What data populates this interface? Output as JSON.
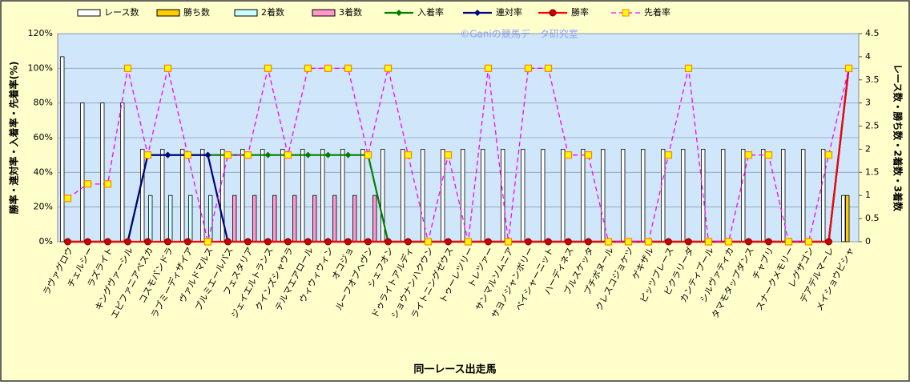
{
  "chart_data": {
    "type": "combo",
    "watermark": "©Ganiの競馬データ研究室",
    "x_label": "同一レース出走馬",
    "y_label": "勝率・連対率・入着率・先着率(%)",
    "y2_label": "レース数・勝ち数・2着数・3着数",
    "categories": [
      "ラヴァグロウ",
      "チェルシー",
      "ラズライト",
      "キングヴァーシル",
      "エピファニアペスカ",
      "コスモパンドラ",
      "ラブミーディザイア",
      "ヴァルドマルス",
      "プルミエールパス",
      "フェスタリア",
      "ジェイエルトランス",
      "クインズシャウラ",
      "テルマエアロール",
      "ウィウィウィン",
      "オコジョ",
      "ルーフオブヘヴン",
      "シェフオン",
      "ドゥライトアルディ",
      "ショウナンハクウン",
      "ライトニングゼウス",
      "トゥーレツリー",
      "トレツァー",
      "サンマルソムニア",
      "サヨノジャンボリー",
      "ベイシャーニット",
      "ハーディネス",
      "ブルスケッタ",
      "プチボヌール",
      "クレスコジョケツ",
      "ゲキザル",
      "ピッツブレース",
      "ビクラリーダ",
      "カンティプール",
      "シルヴァティカ",
      "タマモタップダンス",
      "チャブリ",
      "スナークメモリー",
      "レグザゴン",
      "デアデルマーレ",
      "メイショウビシャ"
    ],
    "ylim": [
      0,
      120
    ],
    "yticks": [
      {
        "value": 0,
        "label": "0%"
      },
      {
        "value": 20,
        "label": "20%"
      },
      {
        "value": 40,
        "label": "40%"
      },
      {
        "value": 60,
        "label": "60%"
      },
      {
        "value": 80,
        "label": "80%"
      },
      {
        "value": 100,
        "label": "100%"
      },
      {
        "value": 120,
        "label": "120%"
      }
    ],
    "y2lim": [
      0,
      4.5
    ],
    "y2ticks": [
      0,
      0.5,
      1,
      1.5,
      2,
      2.5,
      3,
      3.5,
      4,
      4.5
    ],
    "grid": true,
    "series": [
      {
        "name": "レース数",
        "type": "bar",
        "axis": "y2",
        "color": "#ffffff",
        "values": [
          4,
          3,
          3,
          3,
          2,
          2,
          2,
          2,
          2,
          2,
          2,
          2,
          2,
          2,
          2,
          2,
          2,
          2,
          2,
          2,
          2,
          2,
          2,
          2,
          2,
          2,
          2,
          2,
          2,
          2,
          2,
          2,
          2,
          2,
          2,
          2,
          2,
          2,
          2,
          1
        ]
      },
      {
        "name": "勝ち数",
        "type": "bar",
        "axis": "y2",
        "color": "#ffcc00",
        "values": [
          0,
          0,
          0,
          0,
          0,
          0,
          0,
          0,
          0,
          0,
          0,
          0,
          0,
          0,
          0,
          0,
          0,
          0,
          0,
          0,
          0,
          0,
          0,
          0,
          0,
          0,
          0,
          0,
          0,
          0,
          0,
          0,
          0,
          0,
          0,
          0,
          0,
          0,
          0,
          1
        ]
      },
      {
        "name": "2着数",
        "type": "bar",
        "axis": "y2",
        "color": "#ccffff",
        "values": [
          0,
          0,
          0,
          0,
          1,
          1,
          1,
          1,
          0,
          0,
          0,
          0,
          0,
          0,
          0,
          0,
          0,
          0,
          0,
          0,
          0,
          0,
          0,
          0,
          0,
          0,
          0,
          0,
          0,
          0,
          0,
          0,
          0,
          0,
          0,
          0,
          0,
          0,
          0,
          0
        ]
      },
      {
        "name": "3着数",
        "type": "bar",
        "axis": "y2",
        "color": "#ff99cc",
        "values": [
          0,
          0,
          0,
          0,
          0,
          0,
          0,
          0,
          1,
          1,
          1,
          1,
          1,
          1,
          1,
          1,
          0,
          0,
          0,
          0,
          0,
          0,
          0,
          0,
          0,
          0,
          0,
          0,
          0,
          0,
          0,
          0,
          0,
          0,
          0,
          0,
          0,
          0,
          0,
          0
        ]
      },
      {
        "name": "入着率",
        "type": "line",
        "axis": "y",
        "color": "#008000",
        "marker": "diamond",
        "values": [
          0,
          0,
          0,
          0,
          50,
          50,
          50,
          50,
          50,
          50,
          50,
          50,
          50,
          50,
          50,
          50,
          0,
          0,
          0,
          0,
          0,
          0,
          0,
          0,
          0,
          0,
          0,
          0,
          0,
          0,
          0,
          0,
          0,
          0,
          0,
          0,
          0,
          0,
          0,
          100
        ]
      },
      {
        "name": "連対率",
        "type": "line",
        "axis": "y",
        "color": "#000080",
        "marker": "diamond",
        "values": [
          0,
          0,
          0,
          0,
          50,
          50,
          50,
          50,
          0,
          0,
          0,
          0,
          0,
          0,
          0,
          0,
          0,
          0,
          0,
          0,
          0,
          0,
          0,
          0,
          0,
          0,
          0,
          0,
          0,
          0,
          0,
          0,
          0,
          0,
          0,
          0,
          0,
          0,
          0,
          100
        ]
      },
      {
        "name": "勝率",
        "type": "line",
        "axis": "y",
        "color": "#ff0000",
        "marker": "circle",
        "marker_color": "#cc0000",
        "values": [
          0,
          0,
          0,
          0,
          0,
          0,
          0,
          0,
          0,
          0,
          0,
          0,
          0,
          0,
          0,
          0,
          0,
          0,
          0,
          0,
          0,
          0,
          0,
          0,
          0,
          0,
          0,
          0,
          0,
          0,
          0,
          0,
          0,
          0,
          0,
          0,
          0,
          0,
          0,
          100
        ]
      },
      {
        "name": "先着率",
        "type": "line",
        "axis": "y",
        "color": "#ff00ff",
        "dashed": true,
        "marker": "square",
        "marker_color": "#ffff00",
        "values": [
          25,
          33.3,
          33.3,
          100,
          50,
          100,
          50,
          0,
          50,
          50,
          100,
          50,
          100,
          100,
          100,
          50,
          100,
          50,
          0,
          50,
          0,
          100,
          0,
          100,
          100,
          50,
          50,
          0,
          0,
          0,
          50,
          100,
          0,
          0,
          50,
          50,
          0,
          0,
          50,
          100
        ]
      }
    ]
  }
}
